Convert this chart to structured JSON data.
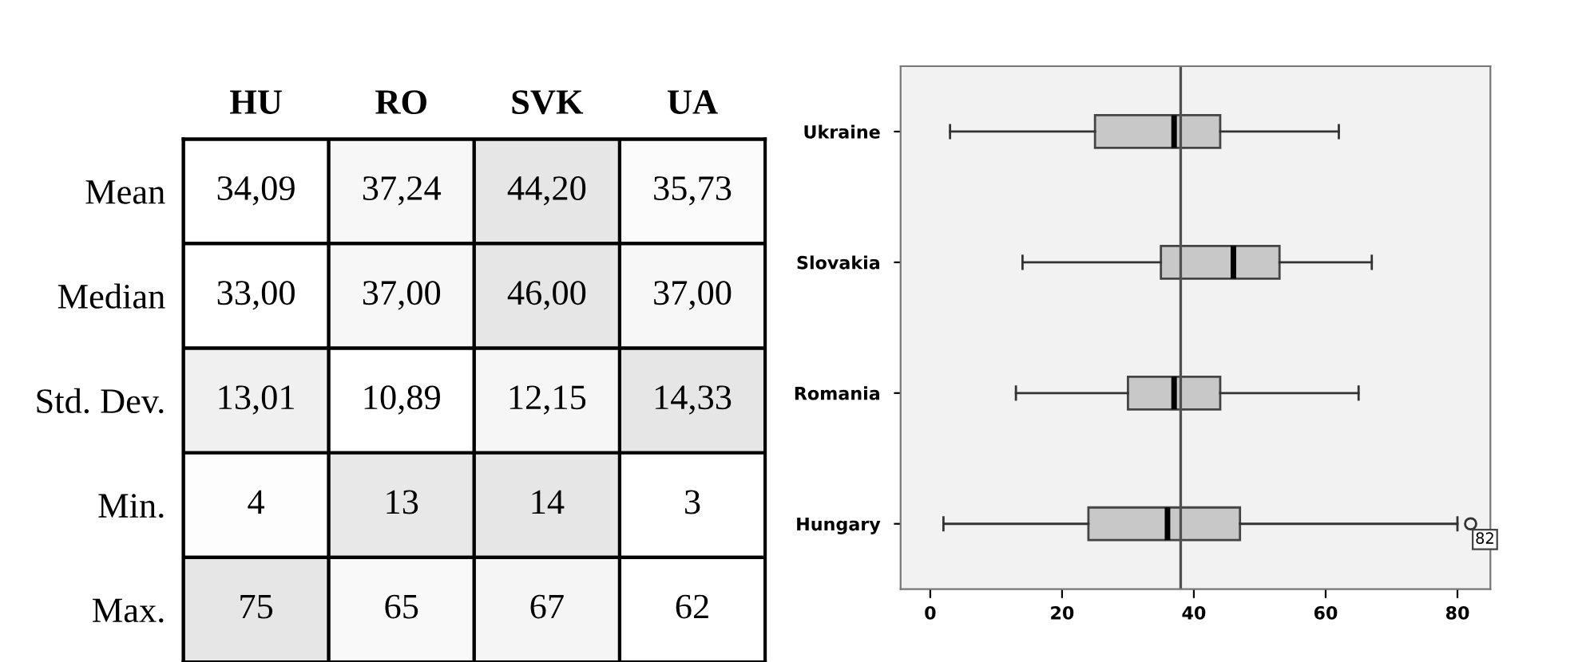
{
  "chart_data": [
    {
      "type": "heatmap",
      "categories": [
        "HU",
        "RO",
        "SVK",
        "UA"
      ],
      "y_categories": [
        "Mean",
        "Median",
        "Std. Dev.",
        "Min.",
        "Max."
      ],
      "cells": [
        [
          34.09,
          37.24,
          44.2,
          35.73
        ],
        [
          33.0,
          37.0,
          46.0,
          37.0
        ],
        [
          13.01,
          10.89,
          12.15,
          14.33
        ],
        [
          4,
          13,
          14,
          3
        ],
        [
          75,
          65,
          67,
          62
        ]
      ],
      "cell_labels": [
        [
          "34,09",
          "37,24",
          "44,20",
          "35,73"
        ],
        [
          "33,00",
          "37,00",
          "46,00",
          "37,00"
        ],
        [
          "13,01",
          "10,89",
          "12,15",
          "14,33"
        ],
        [
          "4",
          "13",
          "14",
          "3"
        ],
        [
          "75",
          "65",
          "67",
          "62"
        ]
      ]
    },
    {
      "type": "box",
      "orientation": "horizontal",
      "categories": [
        "Ukraine",
        "Slovakia",
        "Romania",
        "Hungary"
      ],
      "boxes": [
        {
          "low": 3,
          "q1": 25,
          "median": 37,
          "q3": 44,
          "high": 62
        },
        {
          "low": 14,
          "q1": 35,
          "median": 46,
          "q3": 53,
          "high": 67
        },
        {
          "low": 13,
          "q1": 30,
          "median": 37,
          "q3": 44,
          "high": 65
        },
        {
          "low": 2,
          "q1": 24,
          "median": 36,
          "q3": 47,
          "high": 80,
          "outliers": [
            82
          ]
        }
      ],
      "color": "#c8c8c8",
      "xlim": [
        -4.5,
        85
      ],
      "xticks": [
        0,
        20,
        40,
        60,
        80
      ],
      "ref_lines": [
        {
          "axis": "x",
          "value": 38,
          "color": "#505050"
        }
      ],
      "annotations": [
        "82"
      ],
      "grid": false
    }
  ]
}
